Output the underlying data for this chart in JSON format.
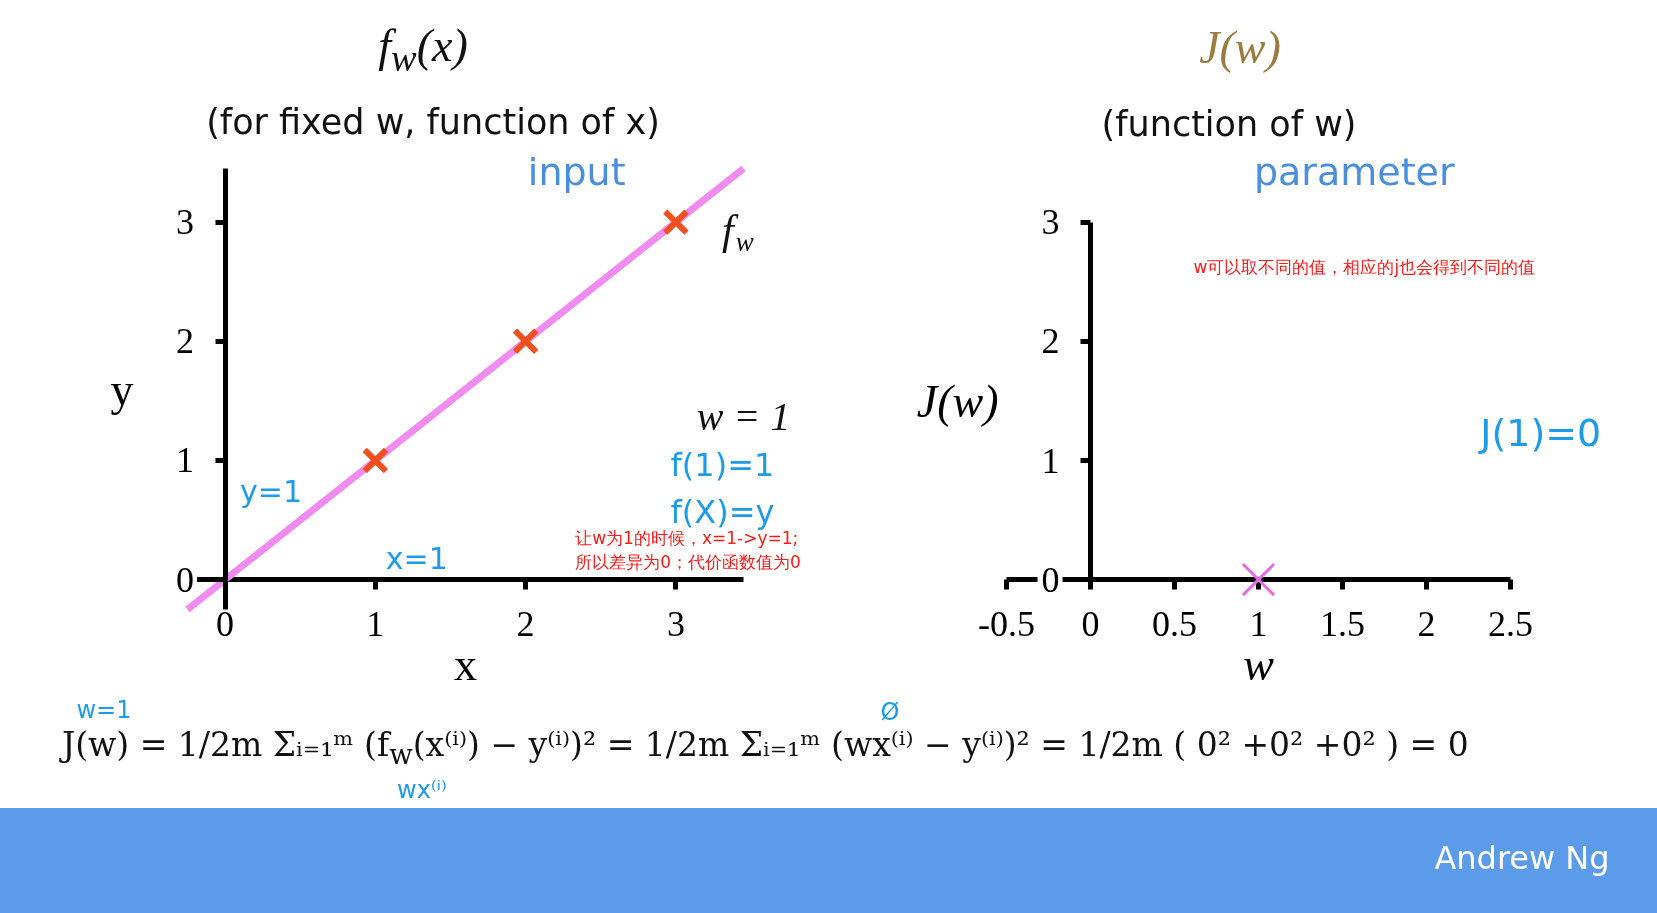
{
  "chart_data": [
    {
      "type": "scatter",
      "title": "f$_{w}$(x)",
      "subtitle": "(for fixed w, function of x)",
      "xlabel": "x",
      "ylabel": "y",
      "xlim": [
        -0.25,
        3.45
      ],
      "ylim": [
        -0.25,
        3.45
      ],
      "xticks": [
        0,
        1,
        2,
        3
      ],
      "yticks": [
        0,
        1,
        2,
        3
      ],
      "series": [
        {
          "type": "line",
          "color": "#f08cf0",
          "x": [
            -0.25,
            3.45
          ],
          "values": [
            -0.25,
            3.45
          ]
        },
        {
          "type": "scatter",
          "marker": "cross",
          "color": "#f0501e",
          "x": [
            1,
            2,
            3
          ],
          "values": [
            1,
            2,
            3
          ]
        }
      ],
      "annotations": [
        "input",
        {
          "text": "f$_{w}$",
          "x": 3,
          "y": 3
        },
        "y=1",
        "x=1",
        "w = 1",
        "f(1)=1",
        "f(X)=y",
        "让w为1的时候，x=1->y=1;\n所以差异为0；代价函数值为0"
      ]
    },
    {
      "type": "scatter",
      "title": "J(w)",
      "subtitle": "(function of w)",
      "xlabel": "w",
      "ylabel": "J(w)",
      "xlim": [
        -0.5,
        2.5
      ],
      "ylim": [
        0,
        3
      ],
      "xticks": [
        -0.5,
        0,
        0.5,
        1,
        1.5,
        2,
        2.5
      ],
      "yticks": [
        0,
        1,
        2,
        3
      ],
      "series": [
        {
          "type": "scatter",
          "marker": "cross",
          "color": "#e070e0",
          "x": [
            1
          ],
          "values": [
            0
          ]
        }
      ],
      "annotations": [
        "parameter",
        "w可以取不同的值，相应的j也会得到不同的值",
        "J(1)=0"
      ]
    },
    {
      "type": "other",
      "annotations": [
        "w=1",
        "J(w) = 1/2m Σᵢ₌₁ᵐ (f$_{w}$(x⁽ⁱ⁾) − y⁽ⁱ⁾)² = 1/2m Σᵢ₌₁ᵐ (wx⁽ⁱ⁾ − y⁽ⁱ⁾)² = 1/2m ( 0² +0² +0² ) = 0",
        "wx⁽ⁱ⁾",
        "Ø",
        "Andrew Ng"
      ]
    }
  ]
}
